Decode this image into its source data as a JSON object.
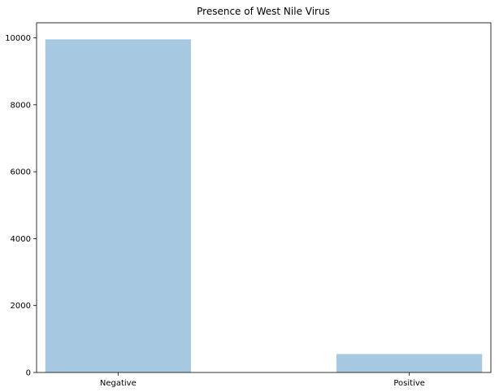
{
  "chart_data": {
    "type": "bar",
    "title": "Presence of West Nile Virus",
    "xlabel": "",
    "ylabel": "",
    "categories": [
      "Negative",
      "Positive"
    ],
    "values": [
      9955,
      551
    ],
    "ylim": [
      0,
      10450
    ],
    "yticks": [
      0,
      2000,
      4000,
      6000,
      8000,
      10000
    ],
    "grid": false,
    "bar_color": "#a6c8e0"
  }
}
